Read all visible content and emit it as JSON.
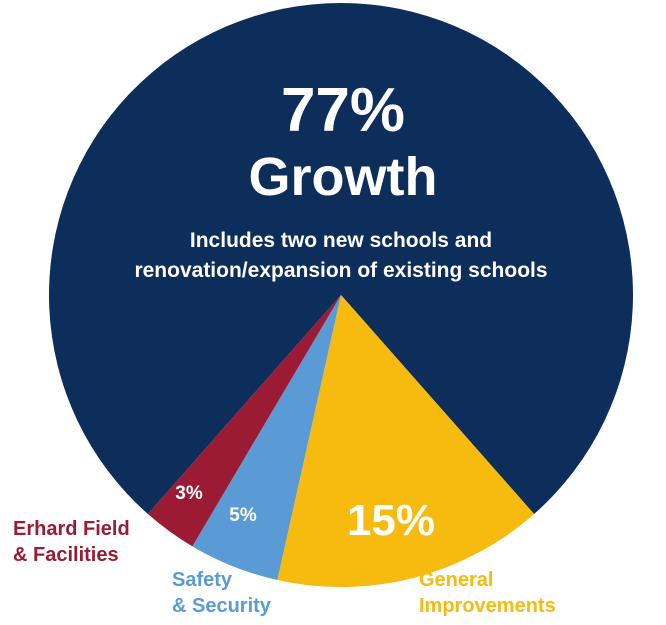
{
  "chart_data": {
    "type": "pie",
    "title": "",
    "slices": [
      {
        "label": "Growth",
        "value": 77,
        "value_label": "77%",
        "color": "#0d2d5b"
      },
      {
        "label": "General Improvements",
        "value": 15,
        "value_label": "15%",
        "color": "#f7bb10"
      },
      {
        "label": "Safety & Security",
        "value": 5,
        "value_label": "5%",
        "color": "#5b9bd5"
      },
      {
        "label": "Erhard Field & Facilities",
        "value": 3,
        "value_label": "3%",
        "color": "#9a1b33"
      }
    ],
    "annotations": {
      "growth_headline": "Growth",
      "growth_desc_line1": "Includes two new schools and",
      "growth_desc_line2": "renovation/expansion of existing schools"
    },
    "outer_labels": {
      "erhard_line1": "Erhard Field",
      "erhard_line2": "& Facilities",
      "safety_line1": "Safety",
      "safety_line2": "& Security",
      "general_line1": "General",
      "general_line2": "Improvements"
    }
  }
}
